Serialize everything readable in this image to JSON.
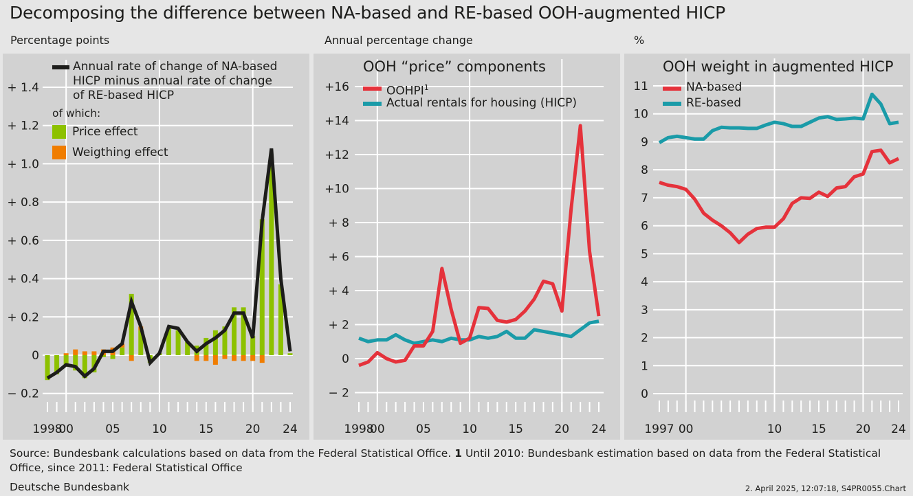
{
  "title": "Decomposing the difference between NA-based and RE-based OOH-augmented HICP",
  "colors": {
    "line": "#1d1d1b",
    "price": "#8dc100",
    "weight": "#f07d00",
    "ooh": "#e5323b",
    "rent": "#1a9ba8"
  },
  "chart_data": [
    {
      "type": "bar",
      "unit_label": "Percentage points",
      "x": [
        1998,
        1999,
        2000,
        2001,
        2002,
        2003,
        2004,
        2005,
        2006,
        2007,
        2008,
        2009,
        2010,
        2011,
        2012,
        2013,
        2014,
        2015,
        2016,
        2017,
        2018,
        2019,
        2020,
        2021,
        2022,
        2023,
        2024
      ],
      "ylim": [
        -0.2,
        1.4
      ],
      "yticks": [
        -0.2,
        0,
        0.2,
        0.4,
        0.6,
        0.8,
        1.0,
        1.2,
        1.4
      ],
      "ytick_labels": [
        "− 0.2",
        "0",
        "+ 0.2",
        "+ 0.4",
        "+ 0.6",
        "+ 0.8",
        "+ 1.0",
        "+ 1.2",
        "+ 1.4"
      ],
      "xtick_labels": [
        {
          "year": 1998,
          "label": "1998"
        },
        {
          "year": 2000,
          "label": "00"
        },
        {
          "year": 2005,
          "label": "05"
        },
        {
          "year": 2010,
          "label": "10"
        },
        {
          "year": 2015,
          "label": "15"
        },
        {
          "year": 2020,
          "label": "20"
        },
        {
          "year": 2024,
          "label": "24"
        }
      ],
      "legend": {
        "line": "Annual rate of change of NA-based HICP minus annual rate of change of RE-based HICP",
        "line_parts": [
          "Annual rate of change of NA-based",
          "HICP minus annual rate of change",
          "of RE-based HICP"
        ],
        "of_which": "of which:",
        "price": "Price effect",
        "weight": "Weigthing effect"
      },
      "series": [
        {
          "name": "Annual rate of change of NA-based HICP minus annual rate of change of RE-based HICP",
          "kind": "line",
          "values": [
            -0.12,
            -0.09,
            -0.05,
            -0.06,
            -0.11,
            -0.07,
            0.02,
            0.02,
            0.06,
            0.28,
            0.15,
            -0.04,
            0.01,
            0.15,
            0.14,
            0.07,
            0.02,
            0.06,
            0.09,
            0.13,
            0.22,
            0.22,
            0.09,
            0.7,
            1.08,
            0.4,
            0.02
          ]
        },
        {
          "name": "Price effect",
          "kind": "bar",
          "values": [
            -0.13,
            -0.1,
            -0.06,
            -0.08,
            -0.12,
            -0.09,
            -0.01,
            -0.02,
            0.04,
            0.32,
            0.13,
            -0.04,
            0.01,
            0.14,
            0.13,
            0.07,
            0.05,
            0.09,
            0.13,
            0.15,
            0.25,
            0.25,
            0.1,
            0.71,
            1.0,
            0.37,
            0.01
          ]
        },
        {
          "name": "Weigthing effect",
          "kind": "bar",
          "values": [
            0,
            0,
            0.01,
            0.03,
            0.02,
            0.02,
            0.03,
            0.04,
            0.02,
            -0.03,
            0.02,
            0,
            0,
            0,
            0,
            0,
            -0.03,
            -0.03,
            -0.05,
            -0.02,
            -0.03,
            -0.03,
            -0.03,
            -0.04,
            0,
            0,
            0
          ]
        }
      ]
    },
    {
      "type": "line",
      "title": "OOH “price” components",
      "unit_label": "Annual percentage change",
      "x": [
        1998,
        1999,
        2000,
        2001,
        2002,
        2003,
        2004,
        2005,
        2006,
        2007,
        2008,
        2009,
        2010,
        2011,
        2012,
        2013,
        2014,
        2015,
        2016,
        2017,
        2018,
        2019,
        2020,
        2021,
        2022,
        2023,
        2024
      ],
      "ylim": [
        -2,
        16
      ],
      "yticks": [
        -2,
        0,
        2,
        4,
        6,
        8,
        10,
        12,
        14,
        16
      ],
      "ytick_labels": [
        "− 2",
        "0",
        "+  2",
        "+  4",
        "+  6",
        "+  8",
        "+10",
        "+12",
        "+14",
        "+16"
      ],
      "xtick_labels": [
        {
          "year": 1998,
          "label": "1998"
        },
        {
          "year": 2000,
          "label": "00"
        },
        {
          "year": 2005,
          "label": "05"
        },
        {
          "year": 2010,
          "label": "10"
        },
        {
          "year": 2015,
          "label": "15"
        },
        {
          "year": 2020,
          "label": "20"
        },
        {
          "year": 2024,
          "label": "24"
        }
      ],
      "series": [
        {
          "name": "OOHPI",
          "superscript": "1",
          "values": [
            -0.4,
            -0.2,
            0.35,
            0,
            -0.2,
            -0.1,
            0.75,
            0.75,
            1.6,
            5.3,
            2.9,
            0.9,
            1.2,
            3.0,
            2.95,
            2.25,
            2.15,
            2.3,
            2.8,
            3.5,
            4.55,
            4.4,
            2.8,
            8.8,
            13.7,
            6.3,
            2.5
          ]
        },
        {
          "name": "Actual rentals for housing (HICP)",
          "values": [
            1.2,
            1.0,
            1.1,
            1.1,
            1.4,
            1.1,
            0.9,
            1.0,
            1.1,
            1.0,
            1.2,
            1.1,
            1.1,
            1.3,
            1.2,
            1.3,
            1.6,
            1.2,
            1.2,
            1.7,
            1.6,
            1.5,
            1.4,
            1.3,
            1.7,
            2.1,
            2.2
          ]
        }
      ]
    },
    {
      "type": "line",
      "title": "OOH weight in augmented HICP",
      "unit_label": "%",
      "x": [
        1997,
        1998,
        1999,
        2000,
        2001,
        2002,
        2003,
        2004,
        2005,
        2006,
        2007,
        2008,
        2009,
        2010,
        2011,
        2012,
        2013,
        2014,
        2015,
        2016,
        2017,
        2018,
        2019,
        2020,
        2021,
        2022,
        2023,
        2024
      ],
      "ylim": [
        0,
        11
      ],
      "yticks": [
        0,
        1,
        2,
        3,
        4,
        5,
        6,
        7,
        8,
        9,
        10,
        11
      ],
      "ytick_labels": [
        "0",
        "1",
        "2",
        "3",
        "4",
        "5",
        "6",
        "7",
        "8",
        "9",
        "10",
        "11"
      ],
      "xtick_labels": [
        {
          "year": 1997,
          "label": "1997"
        },
        {
          "year": 2000,
          "label": "00"
        },
        {
          "year": 2010,
          "label": "10"
        },
        {
          "year": 2015,
          "label": "15"
        },
        {
          "year": 2020,
          "label": "20"
        },
        {
          "year": 2024,
          "label": "24"
        }
      ],
      "series": [
        {
          "name": "NA-based",
          "values": [
            7.55,
            7.45,
            7.4,
            7.3,
            6.95,
            6.45,
            6.2,
            6.0,
            5.75,
            5.4,
            5.7,
            5.9,
            5.95,
            5.95,
            6.25,
            6.8,
            7.0,
            6.98,
            7.2,
            7.05,
            7.35,
            7.4,
            7.75,
            7.85,
            8.65,
            8.7,
            8.25,
            8.4
          ]
        },
        {
          "name": "RE-based",
          "values": [
            8.97,
            9.15,
            9.2,
            9.15,
            9.1,
            9.1,
            9.4,
            9.52,
            9.5,
            9.5,
            9.48,
            9.48,
            9.6,
            9.7,
            9.65,
            9.55,
            9.55,
            9.7,
            9.85,
            9.9,
            9.8,
            9.82,
            9.85,
            9.82,
            10.7,
            10.35,
            9.65,
            9.7
          ]
        }
      ]
    }
  ],
  "footer": {
    "source": "Source: Bundesbank calculations based on data from the Federal Statistical Office.",
    "note_num": "1",
    "note": "Until 2010: Bundesbank estimation based on data from the Federal Statistical Office, since 2011: Federal Statistical Office",
    "publisher": "Deutsche Bundesbank",
    "date": "2. April 2025, 12:07:18, S4PR0055.Chart"
  }
}
